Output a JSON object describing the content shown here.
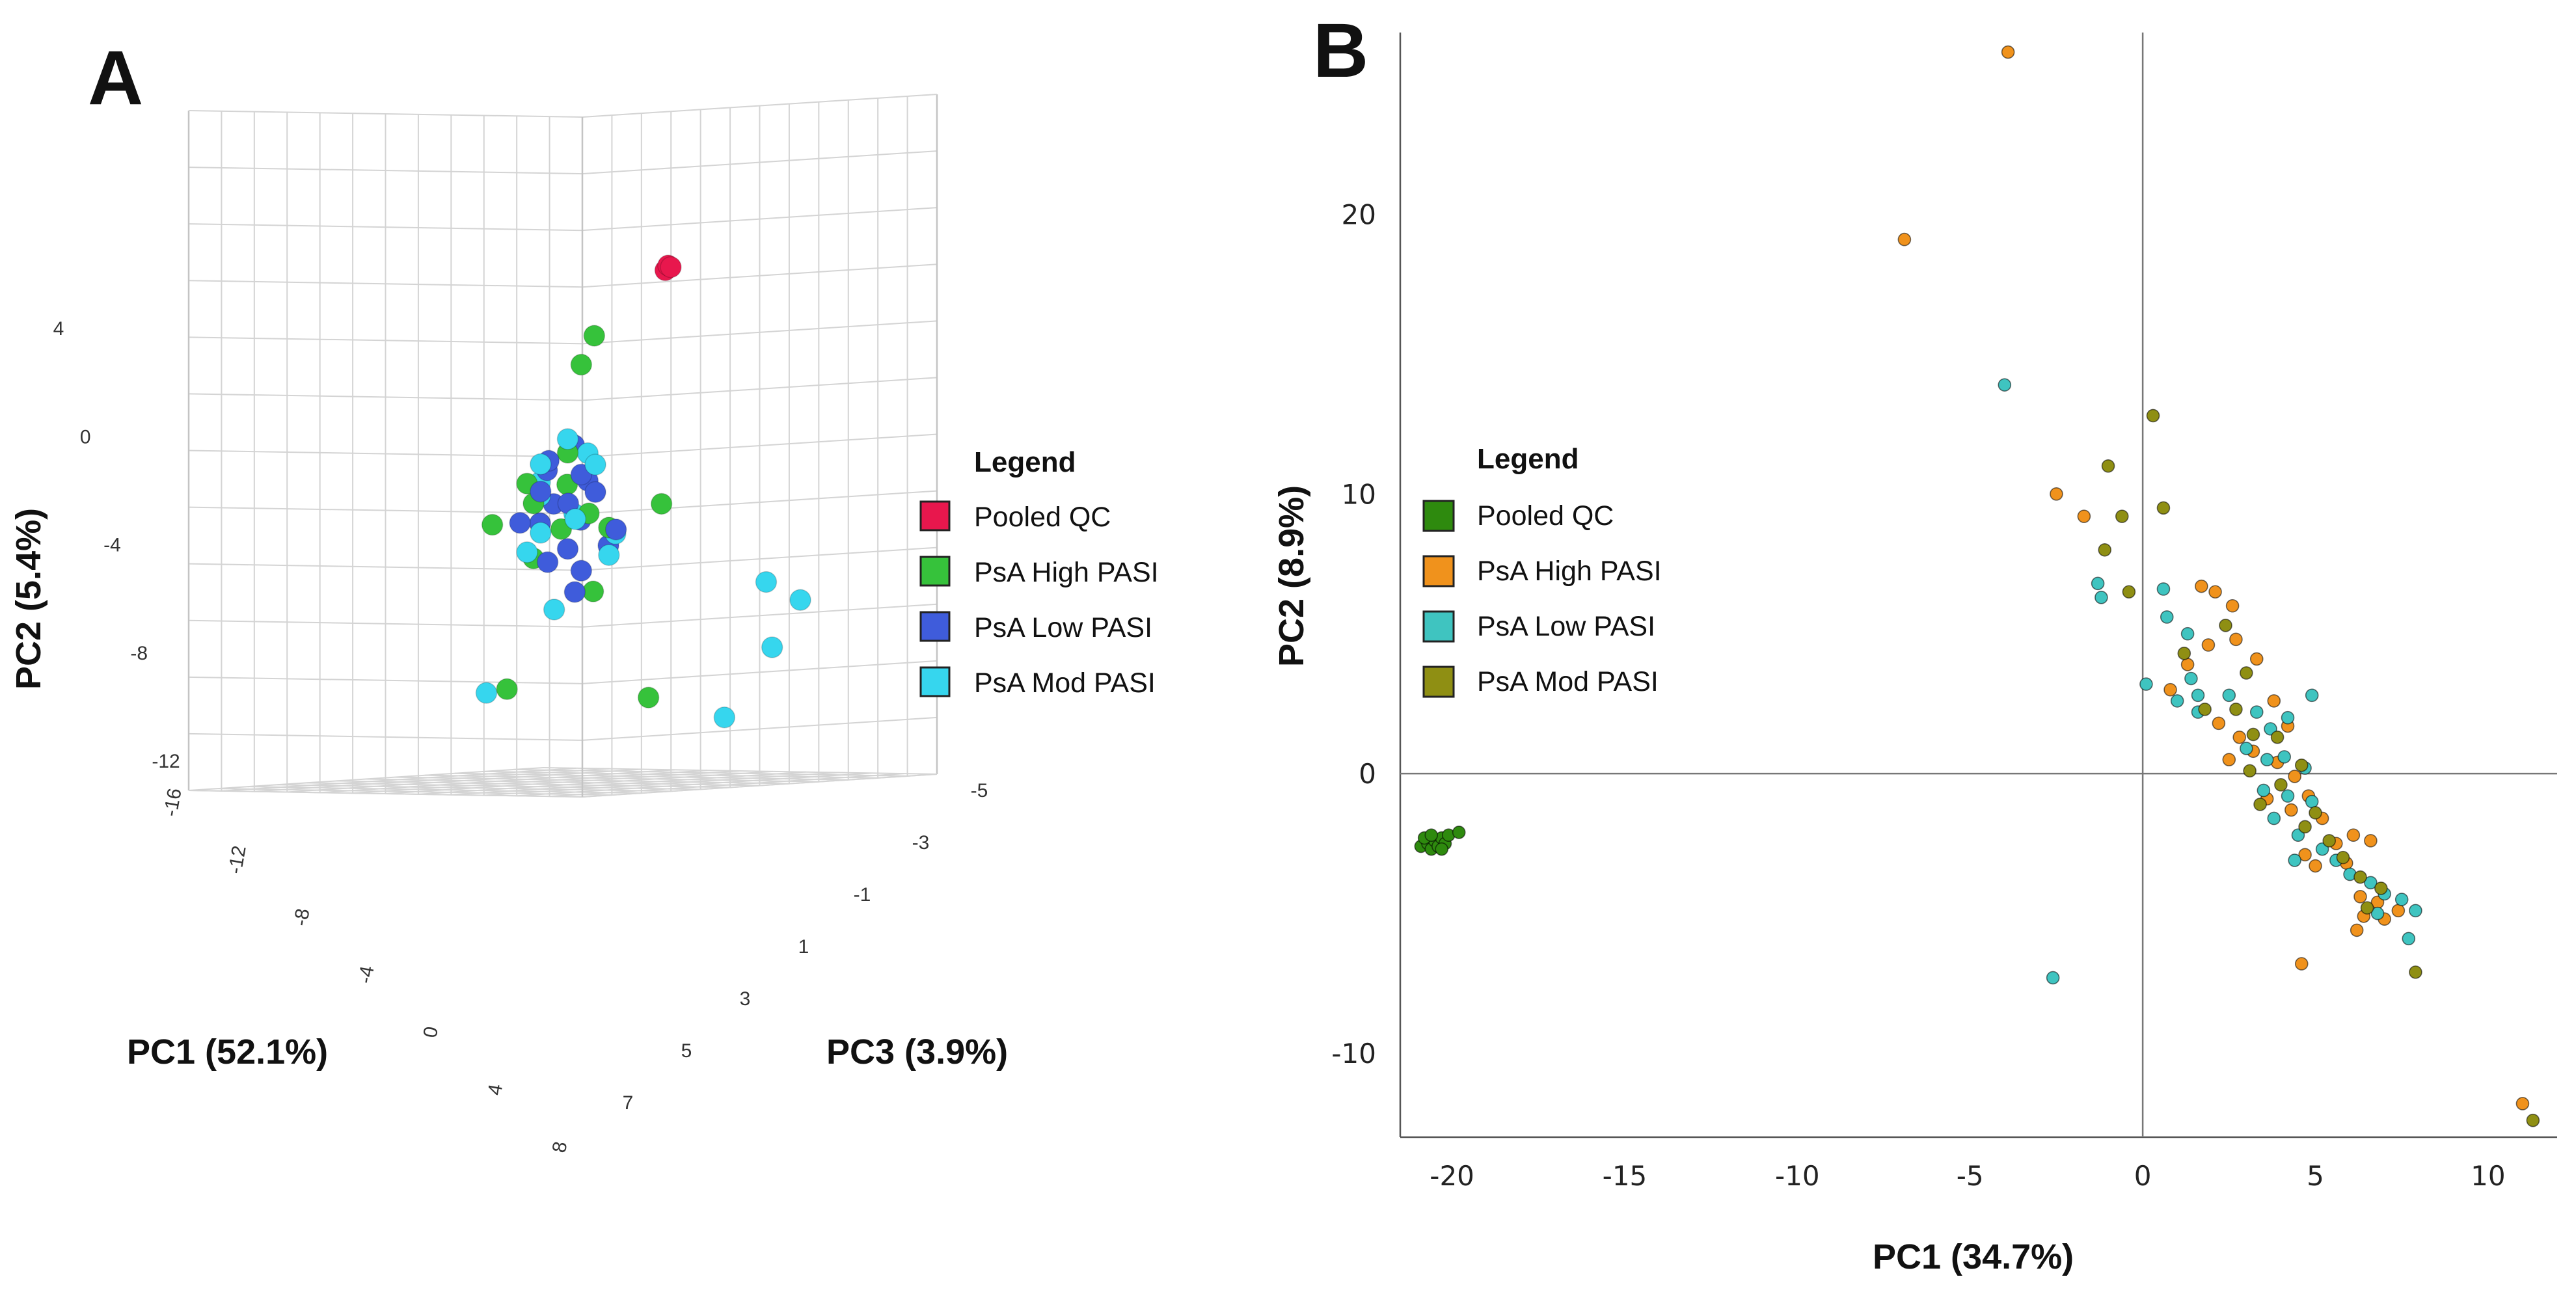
{
  "chart_data": [
    {
      "panel": "A",
      "type": "scatter3d",
      "title": "",
      "axes": {
        "x": {
          "label": "PC1 (52.1%)",
          "ticks": [
            "-16",
            "-12",
            "-8",
            "-4",
            "0",
            "4",
            "8"
          ],
          "range": [
            -16,
            8
          ]
        },
        "y": {
          "label": "PC2 (5.4%)",
          "ticks": [
            "4",
            "0",
            "-4",
            "-8",
            "-12"
          ],
          "range": [
            -12,
            6
          ]
        },
        "z": {
          "label": "PC3 (3.9%)",
          "ticks": [
            "-5",
            "-3",
            "-1",
            "1",
            "3",
            "5",
            "7"
          ],
          "range": [
            -5,
            7
          ]
        }
      },
      "legend": {
        "title": "Legend",
        "position": "right",
        "entries": [
          {
            "name": "Pooled QC",
            "color": "#e8174d"
          },
          {
            "name": "PsA High PASI",
            "color": "#36c23b"
          },
          {
            "name": "PsA Low PASI",
            "color": "#3f5cdb"
          },
          {
            "name": "PsA Mod PASI",
            "color": "#36d6ee"
          }
        ]
      },
      "series": [
        {
          "name": "Pooled QC",
          "color": "#e8174d",
          "points": [
            [
              -14.5,
              3.0,
              7.0
            ],
            [
              -14.3,
              3.2,
              7.0
            ],
            [
              -14.4,
              3.1,
              7.1
            ]
          ]
        },
        {
          "name": "PsA High PASI",
          "color": "#36c23b",
          "points": [
            [
              -2.0,
              4.0,
              1.0
            ],
            [
              0.0,
              3.5,
              0.0
            ],
            [
              -5.0,
              -6.0,
              2.0
            ],
            [
              -6.0,
              -3.5,
              4.0
            ],
            [
              -4.0,
              -10.0,
              3.0
            ],
            [
              3.5,
              -7.0,
              -3.0
            ],
            [
              1.0,
              -1.5,
              -2.5
            ],
            [
              1.0,
              -1.0,
              -1.5
            ],
            [
              0.5,
              0.5,
              -0.5
            ],
            [
              1.5,
              -2.0,
              -1.0
            ],
            [
              -1.0,
              -1.0,
              0.0
            ],
            [
              0.0,
              -2.0,
              -1.0
            ],
            [
              2.0,
              0.0,
              -2.0
            ],
            [
              1.0,
              -3.0,
              -1.5
            ],
            [
              0.5,
              -2.5,
              0.5
            ],
            [
              2.0,
              -1.5,
              -0.5
            ]
          ]
        },
        {
          "name": "PsA Low PASI",
          "color": "#3f5cdb",
          "points": [
            [
              0.0,
              -0.5,
              0.0
            ],
            [
              0.5,
              0.0,
              -1.0
            ],
            [
              1.0,
              -1.0,
              0.0
            ],
            [
              -0.5,
              -1.5,
              -0.5
            ],
            [
              1.5,
              -0.5,
              -1.5
            ],
            [
              0.0,
              -2.0,
              -1.0
            ],
            [
              1.0,
              -2.5,
              0.5
            ],
            [
              2.0,
              -1.0,
              -1.0
            ],
            [
              -1.0,
              -1.0,
              0.5
            ],
            [
              0.5,
              -3.0,
              -0.5
            ],
            [
              1.5,
              -1.5,
              -2.0
            ],
            [
              -0.5,
              0.5,
              0.0
            ],
            [
              2.0,
              -3.0,
              -1.5
            ],
            [
              0.0,
              -4.0,
              0.0
            ],
            [
              -1.0,
              -3.5,
              1.0
            ],
            [
              1.0,
              -4.5,
              -0.5
            ],
            [
              1.2,
              0.5,
              -1.2
            ],
            [
              -1.5,
              -2.5,
              0.5
            ]
          ]
        },
        {
          "name": "PsA Mod PASI",
          "color": "#36d6ee",
          "points": [
            [
              -2.0,
              -7.0,
              6.0
            ],
            [
              -1.5,
              -6.0,
              5.0
            ],
            [
              -4.0,
              -9.0,
              6.0
            ],
            [
              -3.0,
              -11.0,
              4.5
            ],
            [
              3.5,
              -7.0,
              -3.5
            ],
            [
              0.5,
              1.0,
              -0.5
            ],
            [
              0.0,
              -0.5,
              -1.0
            ],
            [
              1.0,
              0.0,
              0.0
            ],
            [
              -0.5,
              -2.0,
              0.0
            ],
            [
              1.5,
              -2.0,
              -1.5
            ],
            [
              0.5,
              -3.5,
              0.5
            ],
            [
              2.0,
              -2.5,
              -2.0
            ],
            [
              -1.0,
              0.0,
              0.5
            ],
            [
              1.0,
              -5.0,
              -1.0
            ],
            [
              0.0,
              -1.0,
              -1.0
            ],
            [
              1.5,
              0.5,
              -1.5
            ],
            [
              -0.5,
              -3.0,
              1.0
            ],
            [
              2.5,
              -1.5,
              -1.0
            ]
          ]
        }
      ]
    },
    {
      "panel": "B",
      "type": "scatter",
      "title": "",
      "xlabel": "PC1 (34.7%)",
      "ylabel": "PC2 (8.9%)",
      "xlim": [
        -21.5,
        12
      ],
      "ylim": [
        -13,
        26.5
      ],
      "xticks": [
        -20,
        -15,
        -10,
        -5,
        0,
        5,
        10
      ],
      "yticks": [
        -10,
        0,
        10,
        20
      ],
      "reference_lines": {
        "x": 0,
        "y": 0
      },
      "legend": {
        "title": "Legend",
        "position": "left",
        "entries": [
          {
            "name": "Pooled QC",
            "color": "#2e8a0e"
          },
          {
            "name": "PsA High PASI",
            "color": "#f0921c"
          },
          {
            "name": "PsA Low PASI",
            "color": "#3fc4c0"
          },
          {
            "name": "PsA Mod PASI",
            "color": "#8f8f13"
          }
        ]
      },
      "series": [
        {
          "name": "Pooled QC",
          "color": "#2e8a0e",
          "points": [
            [
              -20.9,
              -2.6
            ],
            [
              -20.7,
              -2.5
            ],
            [
              -20.6,
              -2.7
            ],
            [
              -20.5,
              -2.4
            ],
            [
              -20.4,
              -2.6
            ],
            [
              -20.3,
              -2.3
            ],
            [
              -20.2,
              -2.5
            ],
            [
              -20.1,
              -2.2
            ],
            [
              -20.8,
              -2.3
            ],
            [
              -20.6,
              -2.2
            ],
            [
              -20.3,
              -2.7
            ],
            [
              -19.8,
              -2.1
            ]
          ]
        },
        {
          "name": "PsA High PASI",
          "color": "#f0921c",
          "points": [
            [
              -3.9,
              25.8
            ],
            [
              -6.9,
              19.1
            ],
            [
              -2.5,
              10.0
            ],
            [
              -1.7,
              9.2
            ],
            [
              1.7,
              6.7
            ],
            [
              2.1,
              6.5
            ],
            [
              2.6,
              6.0
            ],
            [
              1.9,
              4.6
            ],
            [
              2.7,
              4.8
            ],
            [
              3.3,
              4.1
            ],
            [
              1.3,
              3.9
            ],
            [
              0.8,
              3.0
            ],
            [
              2.2,
              1.8
            ],
            [
              3.8,
              2.6
            ],
            [
              4.2,
              1.7
            ],
            [
              3.2,
              0.8
            ],
            [
              2.5,
              0.5
            ],
            [
              3.9,
              0.4
            ],
            [
              4.4,
              -0.1
            ],
            [
              4.8,
              -0.8
            ],
            [
              4.3,
              -1.3
            ],
            [
              5.2,
              -1.6
            ],
            [
              5.6,
              -2.5
            ],
            [
              6.1,
              -2.2
            ],
            [
              6.6,
              -2.4
            ],
            [
              5.0,
              -3.3
            ],
            [
              4.7,
              -2.9
            ],
            [
              5.9,
              -3.2
            ],
            [
              6.3,
              -4.4
            ],
            [
              6.8,
              -4.6
            ],
            [
              6.4,
              -5.1
            ],
            [
              7.0,
              -5.2
            ],
            [
              6.2,
              -5.6
            ],
            [
              7.4,
              -4.9
            ],
            [
              4.6,
              -6.8
            ],
            [
              11.0,
              -11.8
            ],
            [
              3.6,
              -0.9
            ],
            [
              2.8,
              1.3
            ]
          ]
        },
        {
          "name": "PsA Low PASI",
          "color": "#3fc4c0",
          "points": [
            [
              -4.0,
              13.9
            ],
            [
              -1.3,
              6.8
            ],
            [
              -1.2,
              6.3
            ],
            [
              0.6,
              6.6
            ],
            [
              0.7,
              5.6
            ],
            [
              1.3,
              5.0
            ],
            [
              0.1,
              3.2
            ],
            [
              1.4,
              3.4
            ],
            [
              1.0,
              2.6
            ],
            [
              1.6,
              2.8
            ],
            [
              2.5,
              2.8
            ],
            [
              3.3,
              2.2
            ],
            [
              3.7,
              1.6
            ],
            [
              4.2,
              2.0
            ],
            [
              4.9,
              2.8
            ],
            [
              3.0,
              0.9
            ],
            [
              3.6,
              0.5
            ],
            [
              4.1,
              0.6
            ],
            [
              4.7,
              0.2
            ],
            [
              3.5,
              -0.6
            ],
            [
              4.2,
              -0.8
            ],
            [
              4.9,
              -1.0
            ],
            [
              3.8,
              -1.6
            ],
            [
              4.5,
              -2.2
            ],
            [
              5.2,
              -2.7
            ],
            [
              5.6,
              -3.1
            ],
            [
              4.4,
              -3.1
            ],
            [
              6.0,
              -3.6
            ],
            [
              6.6,
              -3.9
            ],
            [
              7.0,
              -4.3
            ],
            [
              7.5,
              -4.5
            ],
            [
              6.8,
              -5.0
            ],
            [
              7.9,
              -4.9
            ],
            [
              7.7,
              -5.9
            ],
            [
              -2.6,
              -7.3
            ],
            [
              1.6,
              2.2
            ]
          ]
        },
        {
          "name": "PsA Mod PASI",
          "color": "#8f8f13",
          "points": [
            [
              0.3,
              12.8
            ],
            [
              -1.0,
              11.0
            ],
            [
              0.6,
              9.5
            ],
            [
              -0.6,
              9.2
            ],
            [
              -1.1,
              8.0
            ],
            [
              -0.4,
              6.5
            ],
            [
              1.2,
              4.3
            ],
            [
              2.4,
              5.3
            ],
            [
              3.0,
              3.6
            ],
            [
              2.7,
              2.3
            ],
            [
              1.8,
              2.3
            ],
            [
              3.2,
              1.4
            ],
            [
              3.9,
              1.3
            ],
            [
              4.6,
              0.3
            ],
            [
              4.0,
              -0.4
            ],
            [
              3.4,
              -1.1
            ],
            [
              5.0,
              -1.4
            ],
            [
              4.7,
              -1.9
            ],
            [
              5.4,
              -2.4
            ],
            [
              5.8,
              -3.0
            ],
            [
              6.3,
              -3.7
            ],
            [
              6.9,
              -4.1
            ],
            [
              6.5,
              -4.8
            ],
            [
              7.9,
              -7.1
            ],
            [
              11.3,
              -12.4
            ],
            [
              3.1,
              0.1
            ]
          ]
        }
      ]
    }
  ],
  "panels": {
    "a": {
      "letter": "A"
    },
    "b": {
      "letter": "B"
    }
  }
}
